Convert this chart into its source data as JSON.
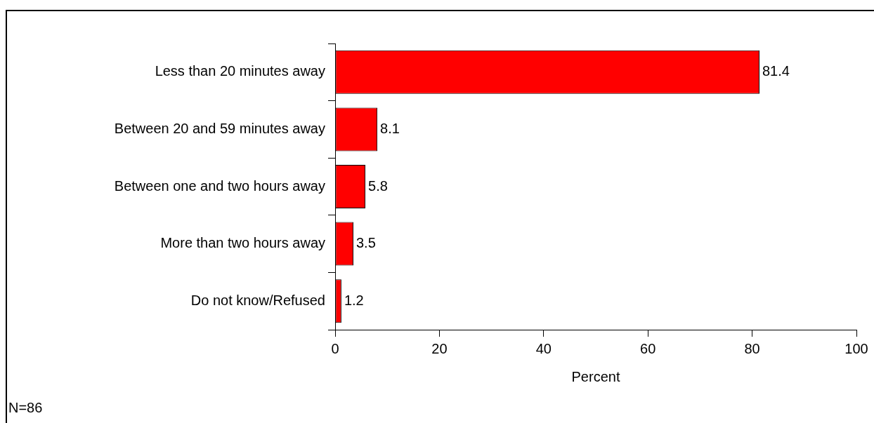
{
  "chart_data": {
    "type": "bar",
    "orientation": "horizontal",
    "categories": [
      "Less than 20 minutes away",
      "Between 20 and 59 minutes away",
      "Between one and two hours away",
      "More than two hours away",
      "Do not know/Refused"
    ],
    "values": [
      81.4,
      8.1,
      5.8,
      3.5,
      1.2
    ],
    "color": "#ff0000",
    "data_labels": true,
    "xlabel": "Percent",
    "xlim": [
      0,
      100
    ],
    "xticks": [
      0,
      20,
      40,
      60,
      80,
      100
    ],
    "grid": false,
    "legend": false,
    "annotations": [
      "N=86"
    ]
  }
}
